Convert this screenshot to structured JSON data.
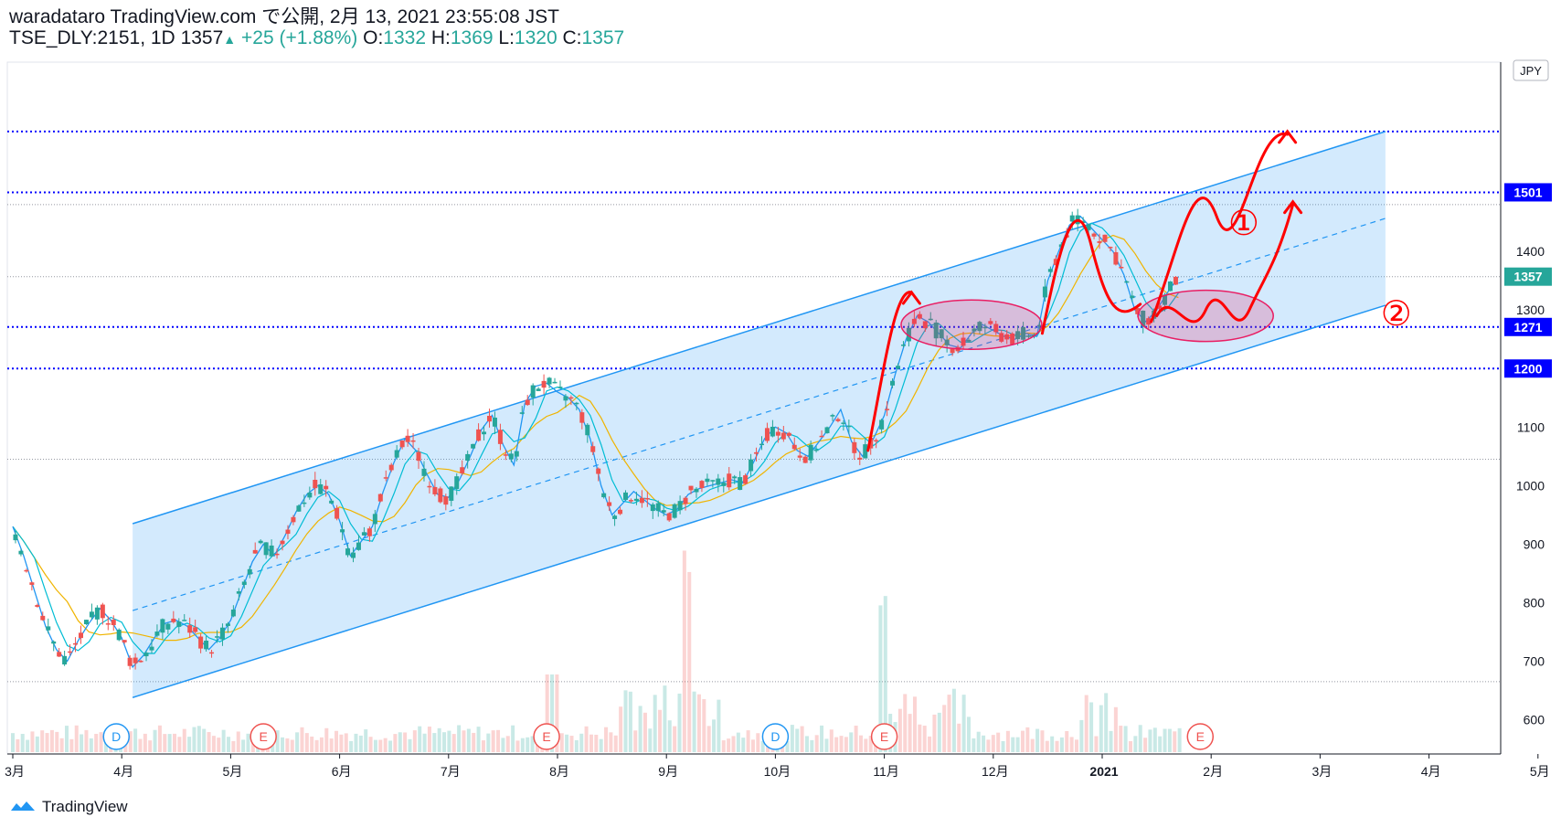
{
  "header": {
    "line1": "waradataro TradingView.com で公開, 2月 13, 2021 23:55:08 JST",
    "symbol": "TSE_DLY:2151, 1D",
    "price": "1357",
    "change": "+25 (+1.88%)",
    "o_label": "O:",
    "o": "1332",
    "h_label": "H:",
    "h": "1369",
    "l_label": "L:",
    "l": "1320",
    "c_label": "C:",
    "c": "1357"
  },
  "footer": {
    "brand": "TradingView"
  },
  "colors": {
    "up": "#26a69a",
    "down": "#ef5350",
    "channel": "#2196f3",
    "level": "#0000ff",
    "annot": "#ff0000",
    "ma_fast": "#2196f3",
    "ma_slow": "#f0b400"
  },
  "chart_data": {
    "type": "candlestick",
    "currency": "JPY",
    "ylim": [
      540,
      1700
    ],
    "y_ticks": [
      600,
      700,
      800,
      900,
      1000,
      1100,
      1200,
      1300,
      1400
    ],
    "x_ticks": [
      "3月",
      "4月",
      "5月",
      "6月",
      "7月",
      "8月",
      "9月",
      "10月",
      "11月",
      "12月",
      "2021",
      "2月",
      "3月",
      "4月",
      "5月"
    ],
    "x_tick_months": [
      0,
      1,
      2,
      3,
      4,
      5,
      6,
      7,
      8,
      9,
      10,
      11,
      12,
      13,
      14
    ],
    "price_labels": [
      {
        "value": 1501,
        "text": "1501",
        "color": "#0000ff"
      },
      {
        "value": 1357,
        "text": "1357",
        "color": "#26a69a"
      },
      {
        "value": 1271,
        "text": "1271",
        "color": "#0000ff"
      },
      {
        "value": 1200,
        "text": "1200",
        "color": "#0000ff"
      }
    ],
    "horizontal_levels": [
      1605,
      1501,
      1271,
      1200
    ],
    "gray_levels": [
      1480,
      1357,
      1045,
      665
    ],
    "events": [
      {
        "label": "D",
        "month": 0.95,
        "kind": "div"
      },
      {
        "label": "E",
        "month": 2.3,
        "kind": "earn"
      },
      {
        "label": "E",
        "month": 4.9,
        "kind": "earn"
      },
      {
        "label": "D",
        "month": 7.0,
        "kind": "div"
      },
      {
        "label": "E",
        "month": 8.0,
        "kind": "earn"
      },
      {
        "label": "E",
        "month": 10.9,
        "kind": "earn"
      }
    ],
    "channel": {
      "start_month": 1.1,
      "end_month": 12.6,
      "upper_start": 935,
      "upper_end": 1605,
      "lower_start": 638,
      "lower_end": 1308
    },
    "annotations": [
      {
        "text": "①",
        "month": 11.3,
        "price": 1445
      },
      {
        "text": "②",
        "month": 12.7,
        "price": 1290
      }
    ],
    "closes": [
      [
        0.0,
        930
      ],
      [
        0.1,
        880
      ],
      [
        0.2,
        820
      ],
      [
        0.3,
        760
      ],
      [
        0.4,
        720
      ],
      [
        0.5,
        700
      ],
      [
        0.6,
        735
      ],
      [
        0.7,
        765
      ],
      [
        0.8,
        790
      ],
      [
        0.9,
        770
      ],
      [
        1.0,
        740
      ],
      [
        1.1,
        690
      ],
      [
        1.2,
        710
      ],
      [
        1.3,
        740
      ],
      [
        1.4,
        765
      ],
      [
        1.5,
        770
      ],
      [
        1.6,
        760
      ],
      [
        1.7,
        740
      ],
      [
        1.8,
        720
      ],
      [
        1.9,
        740
      ],
      [
        2.0,
        770
      ],
      [
        2.1,
        820
      ],
      [
        2.2,
        870
      ],
      [
        2.3,
        900
      ],
      [
        2.4,
        880
      ],
      [
        2.5,
        915
      ],
      [
        2.6,
        955
      ],
      [
        2.7,
        985
      ],
      [
        2.8,
        1000
      ],
      [
        2.9,
        985
      ],
      [
        3.0,
        940
      ],
      [
        3.1,
        880
      ],
      [
        3.2,
        905
      ],
      [
        3.3,
        930
      ],
      [
        3.4,
        990
      ],
      [
        3.5,
        1040
      ],
      [
        3.6,
        1080
      ],
      [
        3.7,
        1060
      ],
      [
        3.8,
        1020
      ],
      [
        3.9,
        985
      ],
      [
        4.0,
        980
      ],
      [
        4.1,
        1010
      ],
      [
        4.2,
        1050
      ],
      [
        4.3,
        1095
      ],
      [
        4.4,
        1120
      ],
      [
        4.5,
        1070
      ],
      [
        4.6,
        1035
      ],
      [
        4.7,
        1140
      ],
      [
        4.8,
        1170
      ],
      [
        4.9,
        1175
      ],
      [
        5.0,
        1160
      ],
      [
        5.1,
        1150
      ],
      [
        5.2,
        1130
      ],
      [
        5.3,
        1080
      ],
      [
        5.4,
        1000
      ],
      [
        5.5,
        950
      ],
      [
        5.6,
        970
      ],
      [
        5.7,
        990
      ],
      [
        5.8,
        975
      ],
      [
        5.9,
        960
      ],
      [
        6.0,
        950
      ],
      [
        6.1,
        960
      ],
      [
        6.2,
        985
      ],
      [
        6.3,
        995
      ],
      [
        6.4,
        1000
      ],
      [
        6.5,
        1005
      ],
      [
        6.6,
        1010
      ],
      [
        6.7,
        1005
      ],
      [
        6.8,
        1040
      ],
      [
        6.9,
        1080
      ],
      [
        7.0,
        1100
      ],
      [
        7.1,
        1090
      ],
      [
        7.2,
        1060
      ],
      [
        7.3,
        1050
      ],
      [
        7.4,
        1075
      ],
      [
        7.5,
        1100
      ],
      [
        7.6,
        1130
      ],
      [
        7.7,
        1075
      ],
      [
        7.8,
        1050
      ],
      [
        7.9,
        1080
      ],
      [
        8.0,
        1120
      ],
      [
        8.1,
        1190
      ],
      [
        8.2,
        1250
      ],
      [
        8.3,
        1290
      ],
      [
        8.4,
        1280
      ],
      [
        8.5,
        1260
      ],
      [
        8.6,
        1240
      ],
      [
        8.7,
        1235
      ],
      [
        8.8,
        1260
      ],
      [
        8.9,
        1275
      ],
      [
        9.0,
        1265
      ],
      [
        9.1,
        1255
      ],
      [
        9.2,
        1250
      ],
      [
        9.3,
        1260
      ],
      [
        9.4,
        1255
      ],
      [
        9.5,
        1350
      ],
      [
        9.6,
        1400
      ],
      [
        9.7,
        1445
      ],
      [
        9.8,
        1460
      ],
      [
        9.9,
        1440
      ],
      [
        10.0,
        1420
      ],
      [
        10.1,
        1400
      ],
      [
        10.2,
        1360
      ],
      [
        10.3,
        1300
      ],
      [
        10.4,
        1280
      ],
      [
        10.5,
        1300
      ],
      [
        10.6,
        1330
      ],
      [
        10.7,
        1357
      ]
    ]
  }
}
